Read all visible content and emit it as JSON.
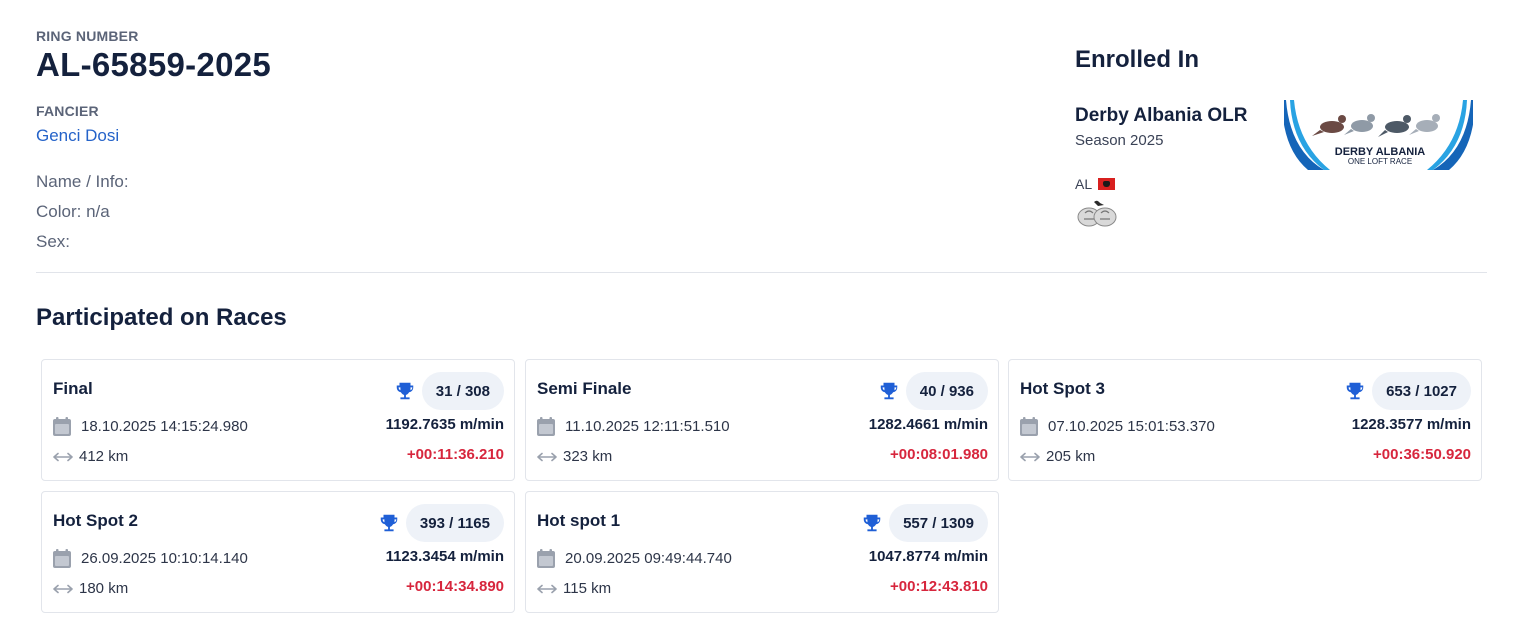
{
  "pigeon": {
    "ring_label": "RING NUMBER",
    "ring_number": "AL-65859-2025",
    "fancier_label": "FANCIER",
    "fancier_name": "Genci Dosi",
    "name_info": "Name / Info:",
    "color": "Color: n/a",
    "sex": "Sex:"
  },
  "enrollment": {
    "title": "Enrolled In",
    "race_name": "Derby Albania OLR",
    "season": "Season 2025",
    "country": "AL",
    "banner_line1": "DERBY ALBANIA",
    "banner_line2": "ONE LOFT RACE"
  },
  "races_section": {
    "title": "Participated on Races",
    "races": [
      {
        "name": "Final",
        "position": "31 / 308",
        "datetime": "18.10.2025 14:15:24.980",
        "distance": "412 km",
        "speed": "1192.7635 m/min",
        "diff": "+00:11:36.210"
      },
      {
        "name": "Semi Finale",
        "position": "40 / 936",
        "datetime": "11.10.2025 12:11:51.510",
        "distance": "323 km",
        "speed": "1282.4661 m/min",
        "diff": "+00:08:01.980"
      },
      {
        "name": "Hot Spot 3",
        "position": "653 / 1027",
        "datetime": "07.10.2025 15:01:53.370",
        "distance": "205 km",
        "speed": "1228.3577 m/min",
        "diff": "+00:36:50.920"
      },
      {
        "name": "Hot Spot 2",
        "position": "393 / 1165",
        "datetime": "26.09.2025 10:10:14.140",
        "distance": "180 km",
        "speed": "1123.3454 m/min",
        "diff": "+00:14:34.890"
      },
      {
        "name": "Hot spot 1",
        "position": "557 / 1309",
        "datetime": "20.09.2025 09:49:44.740",
        "distance": "115 km",
        "speed": "1047.8774 m/min",
        "diff": "+00:12:43.810"
      }
    ]
  },
  "colors": {
    "link": "#2563c9",
    "trophy": "#1f5fd6",
    "time_diff": "#d7263d",
    "heading": "#14213d"
  },
  "icons": {
    "trophy": "trophy-icon",
    "calendar": "calendar-icon",
    "distance": "distance-arrows-icon",
    "flag": "albania-flag-icon",
    "federation": "fci-logo"
  }
}
